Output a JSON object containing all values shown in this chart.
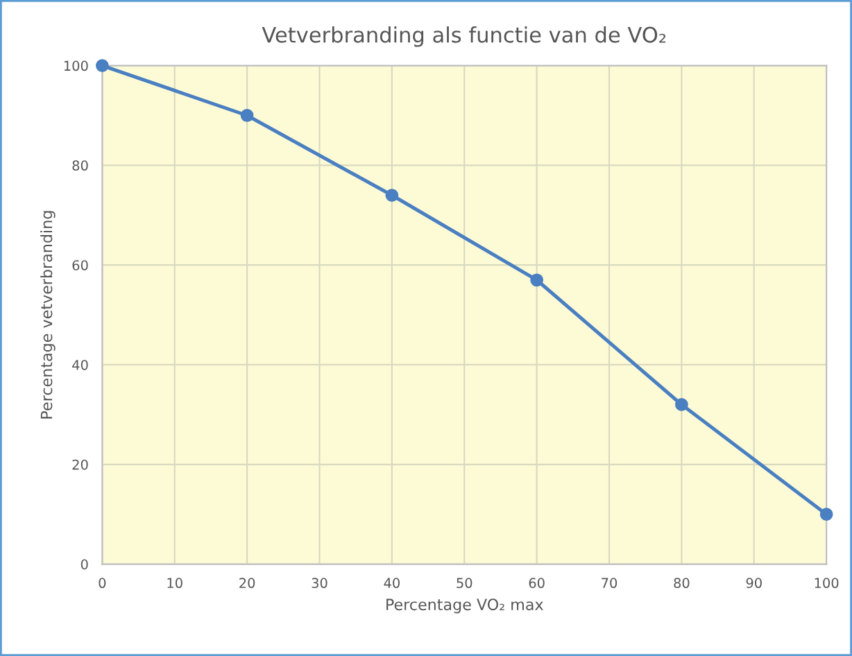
{
  "chart_data": {
    "type": "line",
    "title": "Vetverbranding als functie van de VO₂",
    "xlabel": "Percentage VO₂ max",
    "ylabel": "Percentage vetverbranding",
    "x": [
      0,
      20,
      40,
      60,
      80,
      100
    ],
    "series": [
      {
        "color": "#4a7fc1",
        "values": [
          100,
          90,
          74,
          57,
          32,
          10
        ]
      }
    ],
    "xlim": [
      0,
      100
    ],
    "xticks": [
      0,
      10,
      20,
      30,
      40,
      50,
      60,
      70,
      80,
      90,
      100
    ],
    "ylim": [
      0,
      100
    ],
    "yticks": [
      0,
      20,
      40,
      60,
      80,
      100
    ],
    "grid": true,
    "marker": "circle",
    "line_style": "solid"
  }
}
